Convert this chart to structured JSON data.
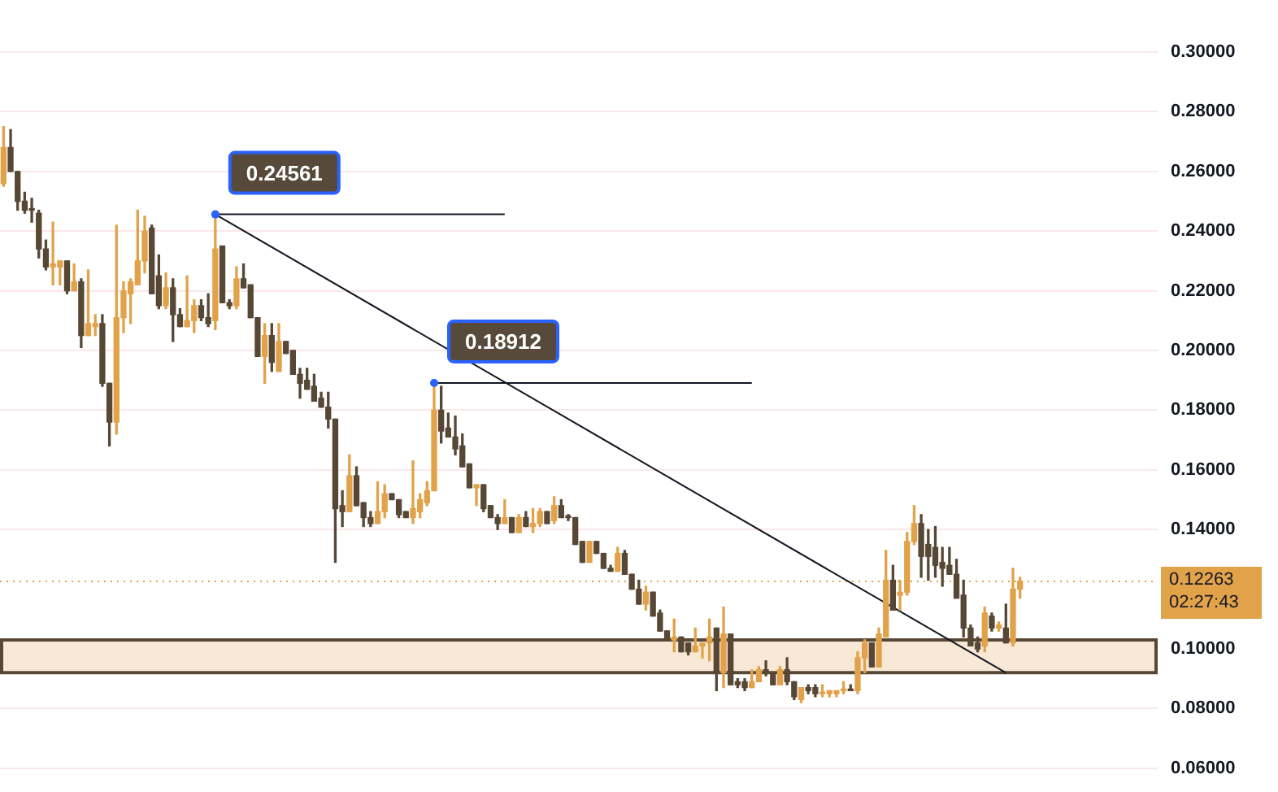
{
  "chart_data": {
    "type": "candlestick",
    "categories": [
      null,
      null,
      null,
      null,
      null,
      null,
      null,
      null,
      null,
      null,
      null,
      null,
      null,
      null,
      null,
      null,
      null,
      null,
      null,
      null,
      null,
      null,
      null,
      null,
      null,
      null,
      null,
      null,
      null,
      null,
      null,
      null,
      null,
      null,
      null,
      null,
      null,
      null,
      null,
      null,
      null,
      null,
      null,
      null,
      null,
      null,
      null,
      null,
      null,
      null,
      null,
      null,
      null,
      null,
      null,
      null,
      null,
      null,
      null,
      null,
      null,
      null,
      null,
      null,
      null,
      null,
      null,
      null,
      null,
      null,
      null,
      null,
      null,
      null,
      null,
      null,
      null,
      null,
      null,
      null,
      null,
      null,
      null,
      null,
      null,
      null,
      null,
      null,
      null,
      null,
      null,
      null,
      null,
      null,
      null,
      null,
      null,
      null,
      null,
      null,
      null,
      null,
      null,
      null,
      null,
      null,
      null,
      null,
      null,
      null,
      null,
      null,
      null,
      null,
      null,
      null,
      null,
      null,
      null,
      null,
      null,
      null,
      null,
      null,
      null,
      null,
      null,
      null,
      null,
      null,
      null,
      null,
      null,
      null,
      null,
      null,
      null,
      null,
      null,
      null,
      null,
      null,
      null,
      null,
      null,
      null,
      null,
      null,
      null,
      null,
      null,
      null,
      null,
      null,
      null,
      null,
      null,
      null,
      null,
      null,
      null,
      null,
      null,
      null
    ],
    "ohlc": [
      [
        0.256,
        0.275,
        0.255,
        0.268
      ],
      [
        0.268,
        0.274,
        0.26,
        0.26
      ],
      [
        0.26,
        0.26,
        0.247,
        0.25
      ],
      [
        0.25,
        0.253,
        0.246,
        0.247
      ],
      [
        0.247,
        0.251,
        0.243,
        0.247
      ],
      [
        0.246,
        0.247,
        0.231,
        0.234
      ],
      [
        0.234,
        0.237,
        0.227,
        0.228
      ],
      [
        0.228,
        0.243,
        0.222,
        0.229
      ],
      [
        0.228,
        0.23,
        0.222,
        0.23
      ],
      [
        0.23,
        0.23,
        0.219,
        0.22
      ],
      [
        0.22,
        0.229,
        0.22,
        0.223
      ],
      [
        0.223,
        0.224,
        0.201,
        0.205
      ],
      [
        0.205,
        0.227,
        0.205,
        0.209
      ],
      [
        0.208,
        0.212,
        0.205,
        0.209
      ],
      [
        0.209,
        0.212,
        0.188,
        0.189
      ],
      [
        0.189,
        0.189,
        0.168,
        0.176
      ],
      [
        0.176,
        0.242,
        0.172,
        0.211
      ],
      [
        0.211,
        0.223,
        0.206,
        0.22
      ],
      [
        0.219,
        0.224,
        0.209,
        0.223
      ],
      [
        0.222,
        0.247,
        0.222,
        0.23
      ],
      [
        0.23,
        0.245,
        0.226,
        0.24
      ],
      [
        0.241,
        0.242,
        0.219,
        0.219
      ],
      [
        0.225,
        0.232,
        0.214,
        0.215
      ],
      [
        0.215,
        0.226,
        0.214,
        0.221
      ],
      [
        0.221,
        0.224,
        0.203,
        0.212
      ],
      [
        0.212,
        0.214,
        0.208,
        0.208
      ],
      [
        0.208,
        0.225,
        0.208,
        0.21
      ],
      [
        0.21,
        0.217,
        0.206,
        0.215
      ],
      [
        0.215,
        0.217,
        0.21,
        0.211
      ],
      [
        0.211,
        0.219,
        0.208,
        0.209
      ],
      [
        0.21,
        0.24561,
        0.207,
        0.234
      ],
      [
        0.235,
        0.235,
        0.216,
        0.216
      ],
      [
        0.216,
        0.217,
        0.214,
        0.215
      ],
      [
        0.215,
        0.228,
        0.214,
        0.224
      ],
      [
        0.224,
        0.229,
        0.221,
        0.221
      ],
      [
        0.222,
        0.222,
        0.211,
        0.211
      ],
      [
        0.211,
        0.211,
        0.198,
        0.198
      ],
      [
        0.198,
        0.209,
        0.189,
        0.205
      ],
      [
        0.205,
        0.209,
        0.193,
        0.196
      ],
      [
        0.193,
        0.209,
        0.193,
        0.203
      ],
      [
        0.203,
        0.203,
        0.199,
        0.199
      ],
      [
        0.2,
        0.2,
        0.192,
        0.192
      ],
      [
        0.192,
        0.194,
        0.184,
        0.189
      ],
      [
        0.19,
        0.194,
        0.187,
        0.187
      ],
      [
        0.188,
        0.192,
        0.183,
        0.183
      ],
      [
        0.184,
        0.186,
        0.181,
        0.181
      ],
      [
        0.181,
        0.186,
        0.174,
        0.177
      ],
      [
        0.177,
        0.177,
        0.129,
        0.147
      ],
      [
        0.148,
        0.153,
        0.141,
        0.146
      ],
      [
        0.146,
        0.165,
        0.146,
        0.158
      ],
      [
        0.158,
        0.161,
        0.148,
        0.148
      ],
      [
        0.149,
        0.149,
        0.141,
        0.144
      ],
      [
        0.144,
        0.146,
        0.141,
        0.142
      ],
      [
        0.142,
        0.156,
        0.142,
        0.146
      ],
      [
        0.146,
        0.155,
        0.144,
        0.152
      ],
      [
        0.152,
        0.152,
        0.15,
        0.15
      ],
      [
        0.15,
        0.15,
        0.144,
        0.145
      ],
      [
        0.146,
        0.146,
        0.144,
        0.144
      ],
      [
        0.144,
        0.163,
        0.142,
        0.147
      ],
      [
        0.146,
        0.152,
        0.144,
        0.15
      ],
      [
        0.149,
        0.156,
        0.148,
        0.153
      ],
      [
        0.153,
        0.18912,
        0.153,
        0.18
      ],
      [
        0.18,
        0.188,
        0.169,
        0.173
      ],
      [
        0.174,
        0.179,
        0.171,
        0.171
      ],
      [
        0.171,
        0.178,
        0.165,
        0.167
      ],
      [
        0.168,
        0.172,
        0.161,
        0.161
      ],
      [
        0.162,
        0.162,
        0.154,
        0.154
      ],
      [
        0.154,
        0.155,
        0.148,
        0.155
      ],
      [
        0.155,
        0.155,
        0.146,
        0.147
      ],
      [
        0.148,
        0.148,
        0.144,
        0.144
      ],
      [
        0.144,
        0.145,
        0.14,
        0.142
      ],
      [
        0.142,
        0.15,
        0.142,
        0.144
      ],
      [
        0.144,
        0.144,
        0.139,
        0.139
      ],
      [
        0.139,
        0.145,
        0.139,
        0.144
      ],
      [
        0.144,
        0.146,
        0.141,
        0.141
      ],
      [
        0.141,
        0.147,
        0.139,
        0.142
      ],
      [
        0.142,
        0.147,
        0.141,
        0.146
      ],
      [
        0.146,
        0.146,
        0.142,
        0.142
      ],
      [
        0.143,
        0.151,
        0.142,
        0.148
      ],
      [
        0.148,
        0.15,
        0.144,
        0.144
      ],
      [
        0.144,
        0.145,
        0.143,
        0.144
      ],
      [
        0.144,
        0.144,
        0.135,
        0.135
      ],
      [
        0.136,
        0.136,
        0.129,
        0.129
      ],
      [
        0.129,
        0.136,
        0.129,
        0.136
      ],
      [
        0.136,
        0.136,
        0.132,
        0.132
      ],
      [
        0.132,
        0.132,
        0.127,
        0.127
      ],
      [
        0.127,
        0.128,
        0.126,
        0.126
      ],
      [
        0.126,
        0.134,
        0.126,
        0.132
      ],
      [
        0.132,
        0.133,
        0.125,
        0.125
      ],
      [
        0.125,
        0.125,
        0.12,
        0.12
      ],
      [
        0.12,
        0.123,
        0.115,
        0.115
      ],
      [
        0.115,
        0.121,
        0.113,
        0.119
      ],
      [
        0.119,
        0.119,
        0.111,
        0.111
      ],
      [
        0.112,
        0.113,
        0.106,
        0.106
      ],
      [
        0.106,
        0.106,
        0.103,
        0.103
      ],
      [
        0.103,
        0.11,
        0.099,
        0.104
      ],
      [
        0.104,
        0.104,
        0.099,
        0.099
      ],
      [
        0.102,
        0.102,
        0.098,
        0.099
      ],
      [
        0.099,
        0.107,
        0.099,
        0.101
      ],
      [
        0.101,
        0.102,
        0.097,
        0.102
      ],
      [
        0.102,
        0.11,
        0.096,
        0.104
      ],
      [
        0.107,
        0.107,
        0.086,
        0.092
      ],
      [
        0.092,
        0.114,
        0.087,
        0.105
      ],
      [
        0.105,
        0.105,
        0.088,
        0.088
      ],
      [
        0.089,
        0.09,
        0.087,
        0.088
      ],
      [
        0.089,
        0.09,
        0.086,
        0.087
      ],
      [
        0.087,
        0.093,
        0.087,
        0.089
      ],
      [
        0.089,
        0.094,
        0.089,
        0.093
      ],
      [
        0.093,
        0.096,
        0.091,
        0.092
      ],
      [
        0.092,
        0.092,
        0.088,
        0.088
      ],
      [
        0.088,
        0.094,
        0.088,
        0.093
      ],
      [
        0.093,
        0.097,
        0.088,
        0.089
      ],
      [
        0.089,
        0.089,
        0.083,
        0.084
      ],
      [
        0.083,
        0.087,
        0.082,
        0.087
      ],
      [
        0.087,
        0.088,
        0.085,
        0.086
      ],
      [
        0.087,
        0.088,
        0.084,
        0.085
      ],
      [
        0.085,
        0.088,
        0.084,
        0.085
      ],
      [
        0.085,
        0.086,
        0.084,
        0.086
      ],
      [
        0.085,
        0.086,
        0.084,
        0.086
      ],
      [
        0.086,
        0.089,
        0.085,
        0.086
      ],
      [
        0.086,
        0.088,
        0.086,
        0.086
      ],
      [
        0.086,
        0.099,
        0.085,
        0.097
      ],
      [
        0.097,
        0.103,
        0.092,
        0.102
      ],
      [
        0.102,
        0.102,
        0.094,
        0.094
      ],
      [
        0.094,
        0.107,
        0.094,
        0.105
      ],
      [
        0.104,
        0.133,
        0.104,
        0.123
      ],
      [
        0.123,
        0.128,
        0.113,
        0.113
      ],
      [
        0.118,
        0.123,
        0.113,
        0.119
      ],
      [
        0.119,
        0.139,
        0.118,
        0.136
      ],
      [
        0.136,
        0.148,
        0.135,
        0.142
      ],
      [
        0.142,
        0.145,
        0.124,
        0.131
      ],
      [
        0.135,
        0.14,
        0.123,
        0.131
      ],
      [
        0.134,
        0.141,
        0.124,
        0.128
      ],
      [
        0.129,
        0.134,
        0.121,
        0.127
      ],
      [
        0.128,
        0.134,
        0.125,
        0.125
      ],
      [
        0.125,
        0.13,
        0.117,
        0.117
      ],
      [
        0.118,
        0.123,
        0.104,
        0.107
      ],
      [
        0.107,
        0.108,
        0.101,
        0.101
      ],
      [
        0.102,
        0.104,
        0.099,
        0.1
      ],
      [
        0.101,
        0.114,
        0.099,
        0.112
      ],
      [
        0.111,
        0.112,
        0.106,
        0.107
      ],
      [
        0.107,
        0.109,
        0.106,
        0.108
      ],
      [
        0.107,
        0.115,
        0.102,
        0.102
      ],
      [
        0.102,
        0.127,
        0.101,
        0.12
      ],
      [
        0.12,
        0.124,
        0.117,
        0.12263
      ],
      null,
      null,
      null,
      null,
      null,
      null,
      null,
      null,
      null,
      null,
      null,
      null,
      null,
      null,
      null,
      null,
      null,
      null,
      null
    ],
    "colors": [
      "#e2a24a",
      "#574735",
      "#574735",
      "#574735",
      "#574735",
      "#574735",
      "#574735",
      "#e2a24a",
      "#e2a24a",
      "#574735",
      "#e2a24a",
      "#574735",
      "#e2a24a",
      "#e2a24a",
      "#574735",
      "#574735",
      "#e2a24a",
      "#e2a24a",
      "#e2a24a",
      "#e2a24a",
      "#e2a24a",
      "#574735",
      "#574735",
      "#e2a24a",
      "#574735",
      "#574735",
      "#e2a24a",
      "#e2a24a",
      "#574735",
      "#574735",
      "#e2a24a",
      "#574735",
      "#574735",
      "#e2a24a",
      "#574735",
      "#574735",
      "#574735",
      "#e2a24a",
      "#574735",
      "#e2a24a",
      "#574735",
      "#574735",
      "#574735",
      "#574735",
      "#574735",
      "#574735",
      "#574735",
      "#574735",
      "#574735",
      "#e2a24a",
      "#574735",
      "#574735",
      "#574735",
      "#e2a24a",
      "#e2a24a",
      "#574735",
      "#574735",
      "#574735",
      "#e2a24a",
      "#e2a24a",
      "#e2a24a",
      "#e2a24a",
      "#574735",
      "#574735",
      "#574735",
      "#574735",
      "#574735",
      "#e2a24a",
      "#574735",
      "#574735",
      "#574735",
      "#e2a24a",
      "#574735",
      "#e2a24a",
      "#574735",
      "#e2a24a",
      "#e2a24a",
      "#574735",
      "#e2a24a",
      "#574735",
      "#574735",
      "#574735",
      "#574735",
      "#e2a24a",
      "#574735",
      "#574735",
      "#574735",
      "#e2a24a",
      "#574735",
      "#574735",
      "#574735",
      "#e2a24a",
      "#574735",
      "#574735",
      "#574735",
      "#e2a24a",
      "#574735",
      "#574735",
      "#e2a24a",
      "#e2a24a",
      "#e2a24a",
      "#574735",
      "#e2a24a",
      "#574735",
      "#574735",
      "#574735",
      "#e2a24a",
      "#e2a24a",
      "#574735",
      "#574735",
      "#e2a24a",
      "#574735",
      "#574735",
      "#e2a24a",
      "#574735",
      "#574735",
      "#e2a24a",
      "#e2a24a",
      "#e2a24a",
      "#e2a24a",
      "#574735",
      "#e2a24a",
      "#e2a24a",
      "#574735",
      "#e2a24a",
      "#e2a24a",
      "#574735",
      "#e2a24a",
      "#e2a24a",
      "#e2a24a",
      "#574735",
      "#574735",
      "#574735",
      "#574735",
      "#574735",
      "#574735",
      "#574735",
      "#574735",
      "#574735",
      "#e2a24a",
      "#574735",
      "#e2a24a",
      "#574735",
      "#e2a24a",
      "#e2a24a",
      null,
      null,
      null,
      null,
      null,
      null,
      null,
      null,
      null,
      null,
      null,
      null,
      null,
      null,
      null,
      null,
      null,
      null,
      null
    ],
    "series": [
      {
        "type": "line",
        "color": "#131722",
        "values": [
          null,
          null,
          null,
          null,
          null,
          null,
          null,
          null,
          null,
          null,
          null,
          null,
          null,
          null,
          null,
          null,
          null,
          null,
          null,
          null,
          null,
          null,
          null,
          null,
          null,
          null,
          null,
          null,
          null,
          null,
          0.24561,
          null,
          null,
          null,
          null,
          null,
          null,
          null,
          null,
          null,
          null,
          null,
          null,
          null,
          null,
          null,
          null,
          null,
          null,
          null,
          null,
          null,
          null,
          null,
          null,
          null,
          null,
          null,
          null,
          null,
          null,
          null,
          null,
          null,
          null,
          null,
          null,
          null,
          null,
          null,
          null,
          null,
          null,
          null,
          null,
          null,
          null,
          null,
          null,
          null,
          null,
          null,
          null,
          null,
          null,
          null,
          null,
          null,
          null,
          null,
          null,
          null,
          null,
          null,
          null,
          null,
          null,
          null,
          null,
          null,
          null,
          null,
          null,
          null,
          null,
          null,
          null,
          null,
          null,
          null,
          null,
          null,
          null,
          null,
          null,
          null,
          null,
          null,
          null,
          null,
          null,
          null,
          null,
          null,
          null,
          null,
          null,
          null,
          null,
          null,
          null,
          null,
          null,
          null,
          null,
          null,
          null,
          null,
          null,
          null,
          null,
          null,
          0.092,
          null,
          null,
          null,
          null,
          null,
          null,
          null,
          null,
          null,
          null,
          null,
          null,
          null,
          null,
          null,
          null,
          null,
          null,
          null,
          null,
          null
        ]
      },
      {
        "type": "line",
        "color": "#131722",
        "values": [
          null,
          null,
          null,
          null,
          null,
          null,
          null,
          null,
          null,
          null,
          null,
          null,
          null,
          null,
          null,
          null,
          null,
          null,
          null,
          null,
          null,
          null,
          null,
          null,
          null,
          null,
          null,
          null,
          null,
          null,
          0.24561,
          null,
          null,
          null,
          null,
          null,
          null,
          null,
          null,
          null,
          null,
          null,
          null,
          null,
          null,
          null,
          null,
          null,
          null,
          null,
          null,
          null,
          null,
          null,
          null,
          null,
          null,
          null,
          null,
          null,
          null,
          null,
          null,
          null,
          null,
          null,
          null,
          null,
          null,
          null,
          null,
          0.24561,
          null,
          null,
          null,
          null,
          null,
          null,
          null,
          null,
          null,
          null,
          null,
          null,
          null,
          null,
          null,
          null,
          null,
          null,
          null,
          null,
          null,
          null,
          null,
          null,
          null,
          null,
          null,
          null,
          null,
          null,
          null,
          null,
          null,
          null,
          null,
          null,
          null,
          null,
          null,
          null,
          null,
          null,
          null,
          null,
          null,
          null,
          null,
          null,
          null,
          null,
          null,
          null,
          null,
          null,
          null,
          null,
          null,
          null,
          null,
          null,
          null,
          null,
          null,
          null,
          null,
          null,
          null,
          null,
          null,
          null,
          null,
          null,
          null,
          null,
          null,
          null,
          null,
          null,
          null,
          null,
          null,
          null,
          null,
          null,
          null,
          null,
          null,
          null,
          null,
          null,
          null,
          null
        ]
      },
      {
        "type": "line",
        "color": "#131722",
        "values": [
          null,
          null,
          null,
          null,
          null,
          null,
          null,
          null,
          null,
          null,
          null,
          null,
          null,
          null,
          null,
          null,
          null,
          null,
          null,
          null,
          null,
          null,
          null,
          null,
          null,
          null,
          null,
          null,
          null,
          null,
          null,
          null,
          null,
          null,
          null,
          null,
          null,
          null,
          null,
          null,
          null,
          null,
          null,
          null,
          null,
          null,
          null,
          null,
          null,
          null,
          null,
          null,
          null,
          null,
          null,
          null,
          null,
          null,
          null,
          null,
          null,
          0.18912,
          null,
          null,
          null,
          null,
          null,
          null,
          null,
          null,
          null,
          null,
          null,
          null,
          null,
          null,
          null,
          null,
          null,
          null,
          null,
          null,
          null,
          null,
          null,
          null,
          null,
          null,
          null,
          null,
          null,
          null,
          null,
          null,
          null,
          null,
          null,
          null,
          null,
          null,
          null,
          null,
          null,
          null,
          null,
          null,
          0.18912,
          null,
          null,
          null,
          null,
          null,
          null,
          null,
          null,
          null,
          null,
          null,
          null,
          null,
          null,
          null,
          null,
          null,
          null,
          null,
          null,
          null,
          null,
          null,
          null,
          null,
          null,
          null,
          null,
          null,
          null,
          null,
          null,
          null,
          null,
          null,
          null,
          null,
          null,
          null,
          null,
          null,
          null,
          null,
          null,
          null,
          null,
          null,
          null,
          null,
          null,
          null,
          null,
          null,
          null,
          null,
          null,
          null
        ]
      }
    ],
    "bands": [
      {
        "axis": "y",
        "from": 0.092,
        "to": 0.103,
        "color": "#f8e9d6"
      }
    ],
    "ylim": [
      0.06,
      0.3
    ],
    "yticks": [
      {
        "value": 0.06,
        "label": "0.06000"
      },
      {
        "value": 0.08,
        "label": "0.08000"
      },
      {
        "value": 0.1,
        "label": "0.10000"
      },
      {
        "value": 0.14,
        "label": "0.14000"
      },
      {
        "value": 0.16,
        "label": "0.16000"
      },
      {
        "value": 0.18,
        "label": "0.18000"
      },
      {
        "value": 0.2,
        "label": "0.20000"
      },
      {
        "value": 0.22,
        "label": "0.22000"
      },
      {
        "value": 0.24,
        "label": "0.24000"
      },
      {
        "value": 0.26,
        "label": "0.26000"
      },
      {
        "value": 0.28,
        "label": "0.28000"
      },
      {
        "value": 0.3,
        "label": "0.30000"
      }
    ],
    "grid": "y",
    "ref_lines": [
      {
        "axis": "y",
        "value": 0.12263,
        "label": "0.12263",
        "color": "#e2a24a",
        "line_style": "dotted"
      }
    ],
    "annotations": [
      {
        "text": "0.24561",
        "y": 0.24561
      },
      {
        "text": "0.18912",
        "y": 0.18912
      },
      "02:27:43"
    ]
  }
}
